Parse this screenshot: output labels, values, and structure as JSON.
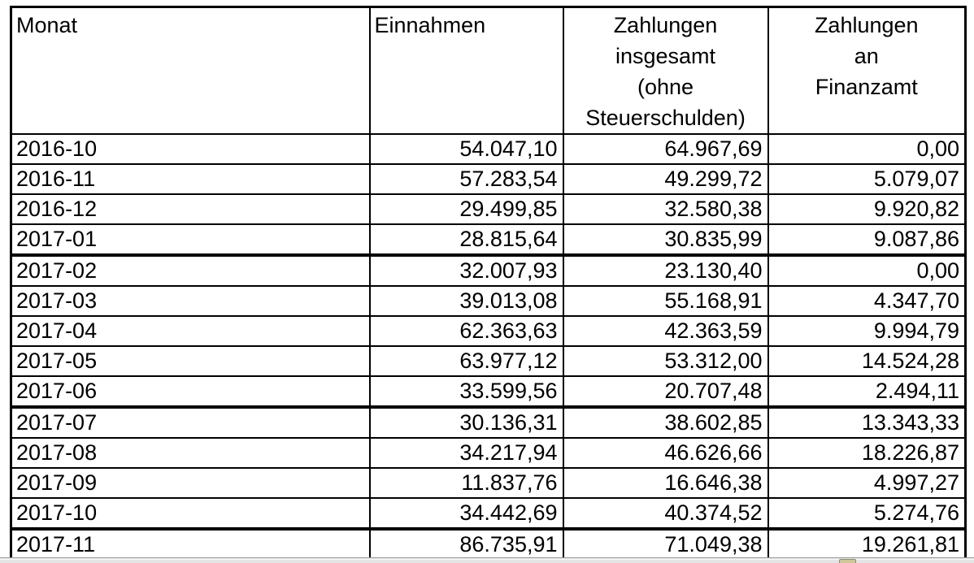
{
  "colors": {
    "table_border": "#000000",
    "background": "#ffffff",
    "bottom_strip": "#e4e4e4",
    "sheet_tab_marker": "#cdc79a"
  },
  "table": {
    "columns": [
      {
        "label": "Monat",
        "align": "left"
      },
      {
        "label": "Einnahmen",
        "align": "left"
      },
      {
        "label": "Zahlungen\ninsgesamt\n(ohne\nSteuerschulden)",
        "align": "center"
      },
      {
        "label": "Zahlungen\nan\nFinanzamt",
        "align": "center"
      }
    ],
    "rows": [
      {
        "monat": "2016-10",
        "einnahmen": "54.047,10",
        "zahlungen_insgesamt": "64.967,69",
        "zahlungen_finanzamt": "0,00",
        "group_end": false
      },
      {
        "monat": "2016-11",
        "einnahmen": "57.283,54",
        "zahlungen_insgesamt": "49.299,72",
        "zahlungen_finanzamt": "5.079,07",
        "group_end": false
      },
      {
        "monat": "2016-12",
        "einnahmen": "29.499,85",
        "zahlungen_insgesamt": "32.580,38",
        "zahlungen_finanzamt": "9.920,82",
        "group_end": false
      },
      {
        "monat": "2017-01",
        "einnahmen": "28.815,64",
        "zahlungen_insgesamt": "30.835,99",
        "zahlungen_finanzamt": "9.087,86",
        "group_end": true
      },
      {
        "monat": "2017-02",
        "einnahmen": "32.007,93",
        "zahlungen_insgesamt": "23.130,40",
        "zahlungen_finanzamt": "0,00",
        "group_end": false
      },
      {
        "monat": "2017-03",
        "einnahmen": "39.013,08",
        "zahlungen_insgesamt": "55.168,91",
        "zahlungen_finanzamt": "4.347,70",
        "group_end": false
      },
      {
        "monat": "2017-04",
        "einnahmen": "62.363,63",
        "zahlungen_insgesamt": "42.363,59",
        "zahlungen_finanzamt": "9.994,79",
        "group_end": false
      },
      {
        "monat": "2017-05",
        "einnahmen": "63.977,12",
        "zahlungen_insgesamt": "53.312,00",
        "zahlungen_finanzamt": "14.524,28",
        "group_end": false
      },
      {
        "monat": "2017-06",
        "einnahmen": "33.599,56",
        "zahlungen_insgesamt": "20.707,48",
        "zahlungen_finanzamt": "2.494,11",
        "group_end": true
      },
      {
        "monat": "2017-07",
        "einnahmen": "30.136,31",
        "zahlungen_insgesamt": "38.602,85",
        "zahlungen_finanzamt": "13.343,33",
        "group_end": false
      },
      {
        "monat": "2017-08",
        "einnahmen": "34.217,94",
        "zahlungen_insgesamt": "46.626,66",
        "zahlungen_finanzamt": "18.226,87",
        "group_end": false
      },
      {
        "monat": "2017-09",
        "einnahmen": "11.837,76",
        "zahlungen_insgesamt": "16.646,38",
        "zahlungen_finanzamt": "4.997,27",
        "group_end": false
      },
      {
        "monat": "2017-10",
        "einnahmen": "34.442,69",
        "zahlungen_insgesamt": "40.374,52",
        "zahlungen_finanzamt": "5.274,76",
        "group_end": true
      },
      {
        "monat": "2017-11",
        "einnahmen": "86.735,91",
        "zahlungen_insgesamt": "71.049,38",
        "zahlungen_finanzamt": "19.261,81",
        "group_end": false
      }
    ]
  }
}
